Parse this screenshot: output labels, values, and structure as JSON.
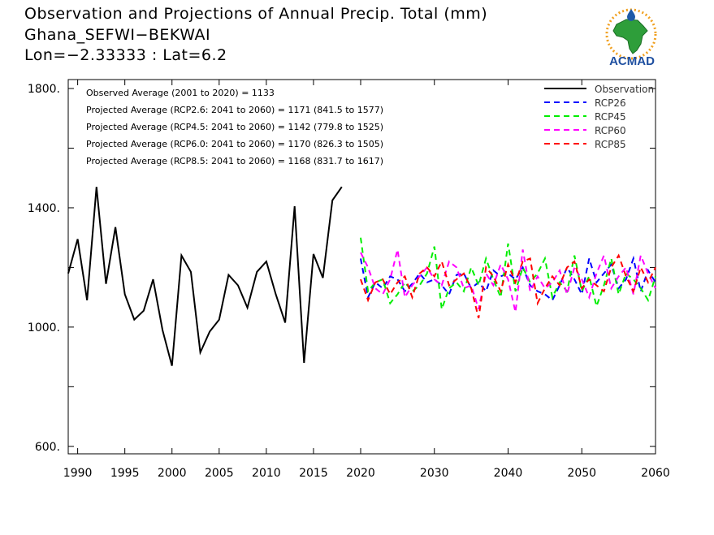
{
  "header": {
    "title": "Observation and Projections of Annual Precip. Total (mm)",
    "location": "Ghana_SEFWI−BEKWAI",
    "coords": "Lon=−2.33333 : Lat=6.2"
  },
  "logo": {
    "text": "ACMAD",
    "icon": "acmad-africa-logo"
  },
  "chart_data": {
    "type": "line",
    "xlim": [
      1989,
      2060
    ],
    "ylim": [
      575,
      1830
    ],
    "x_ticks": [
      1990,
      1995,
      2000,
      2005,
      2010,
      2015,
      2020,
      2030,
      2040,
      2050,
      2060
    ],
    "y_ticks": [
      600,
      1000,
      1400,
      1800
    ],
    "y_tick_labels": [
      "600.",
      "1000.",
      "1400.",
      "1800."
    ],
    "grid": false,
    "legend_position": "top-right",
    "annotations": [
      "Observed Average (2001 to 2020) = 1133",
      "Projected Average (RCP2.6: 2041 to 2060) = 1171 (841.5 to 1577)",
      "Projected Average (RCP4.5: 2041 to 2060) = 1142 (779.8 to 1525)",
      "Projected Average (RCP6.0: 2041 to 2060) = 1170 (826.3 to 1505)",
      "Projected Average (RCP8.5: 2041 to 2060) = 1168 (831.7 to 1617)"
    ],
    "series": [
      {
        "name": "Observation",
        "color": "#000000",
        "dashed": false,
        "x": [
          1989,
          1990,
          1991,
          1992,
          1993,
          1994,
          1995,
          1996,
          1997,
          1998,
          1999,
          2000,
          2001,
          2002,
          2003,
          2004,
          2005,
          2006,
          2007,
          2008,
          2009,
          2010,
          2011,
          2012,
          2013,
          2014,
          2015,
          2016,
          2017,
          2018,
          2019
        ],
        "values": [
          1180,
          1295,
          1090,
          1470,
          1145,
          1335,
          1110,
          1025,
          1055,
          1160,
          990,
          870,
          1240,
          1185,
          915,
          985,
          1025,
          1175,
          1140,
          1065,
          1185,
          1220,
          1110,
          1015,
          1405,
          880,
          1245,
          1165,
          1425,
          1470,
          null
        ]
      },
      {
        "name": "RCP26",
        "color": "#0000ff",
        "dashed": true,
        "x": [
          2020,
          2021,
          2022,
          2023,
          2024,
          2025,
          2026,
          2027,
          2028,
          2029,
          2030,
          2031,
          2032,
          2033,
          2034,
          2035,
          2036,
          2037,
          2038,
          2039,
          2040,
          2041,
          2042,
          2043,
          2044,
          2045,
          2046,
          2047,
          2048,
          2049,
          2050,
          2051,
          2052,
          2053,
          2054,
          2055,
          2056,
          2057,
          2058,
          2059,
          2060
        ],
        "values": [
          1230,
          1100,
          1150,
          1130,
          1170,
          1160,
          1120,
          1145,
          1180,
          1150,
          1160,
          1140,
          1110,
          1175,
          1180,
          1130,
          1150,
          1120,
          1190,
          1170,
          1180,
          1160,
          1200,
          1140,
          1120,
          1110,
          1090,
          1140,
          1200,
          1160,
          1110,
          1230,
          1150,
          1180,
          1210,
          1130,
          1160,
          1230,
          1120,
          1190,
          1150
        ]
      },
      {
        "name": "RCP45",
        "color": "#00ee00",
        "dashed": true,
        "x": [
          2020,
          2021,
          2022,
          2023,
          2024,
          2025,
          2026,
          2027,
          2028,
          2029,
          2030,
          2031,
          2032,
          2033,
          2034,
          2035,
          2036,
          2037,
          2038,
          2039,
          2040,
          2041,
          2042,
          2043,
          2044,
          2045,
          2046,
          2047,
          2048,
          2049,
          2050,
          2051,
          2052,
          2053,
          2054,
          2055,
          2056,
          2057,
          2058,
          2059,
          2060
        ],
        "values": [
          1300,
          1120,
          1150,
          1160,
          1080,
          1110,
          1150,
          1120,
          1140,
          1180,
          1270,
          1060,
          1130,
          1150,
          1120,
          1200,
          1140,
          1230,
          1160,
          1100,
          1280,
          1120,
          1200,
          1150,
          1180,
          1230,
          1100,
          1150,
          1120,
          1240,
          1120,
          1170,
          1070,
          1140,
          1230,
          1110,
          1180,
          1160,
          1130,
          1090,
          1170
        ]
      },
      {
        "name": "RCP60",
        "color": "#ff00ff",
        "dashed": true,
        "x": [
          2020,
          2021,
          2022,
          2023,
          2024,
          2025,
          2026,
          2027,
          2028,
          2029,
          2030,
          2031,
          2032,
          2033,
          2034,
          2035,
          2036,
          2037,
          2038,
          2039,
          2040,
          2041,
          2042,
          2043,
          2044,
          2045,
          2046,
          2047,
          2048,
          2049,
          2050,
          2051,
          2052,
          2053,
          2054,
          2055,
          2056,
          2057,
          2058,
          2059,
          2060
        ],
        "values": [
          1250,
          1200,
          1130,
          1110,
          1160,
          1260,
          1100,
          1140,
          1170,
          1200,
          1160,
          1140,
          1220,
          1200,
          1130,
          1140,
          1060,
          1180,
          1140,
          1210,
          1160,
          1050,
          1260,
          1120,
          1170,
          1130,
          1150,
          1190,
          1110,
          1200,
          1160,
          1100,
          1180,
          1240,
          1130,
          1170,
          1200,
          1110,
          1240,
          1180,
          1130
        ]
      },
      {
        "name": "RCP85",
        "color": "#ff0000",
        "dashed": true,
        "x": [
          2020,
          2021,
          2022,
          2023,
          2024,
          2025,
          2026,
          2027,
          2028,
          2029,
          2030,
          2031,
          2032,
          2033,
          2034,
          2035,
          2036,
          2037,
          2038,
          2039,
          2040,
          2041,
          2042,
          2043,
          2044,
          2045,
          2046,
          2047,
          2048,
          2049,
          2050,
          2051,
          2052,
          2053,
          2054,
          2055,
          2056,
          2057,
          2058,
          2059,
          2060
        ],
        "values": [
          1160,
          1090,
          1150,
          1160,
          1110,
          1150,
          1170,
          1100,
          1180,
          1200,
          1170,
          1220,
          1140,
          1160,
          1180,
          1130,
          1030,
          1200,
          1170,
          1120,
          1210,
          1150,
          1220,
          1230,
          1080,
          1130,
          1170,
          1140,
          1200,
          1220,
          1130,
          1160,
          1140,
          1120,
          1200,
          1240,
          1170,
          1120,
          1200,
          1150,
          1200
        ]
      }
    ]
  }
}
